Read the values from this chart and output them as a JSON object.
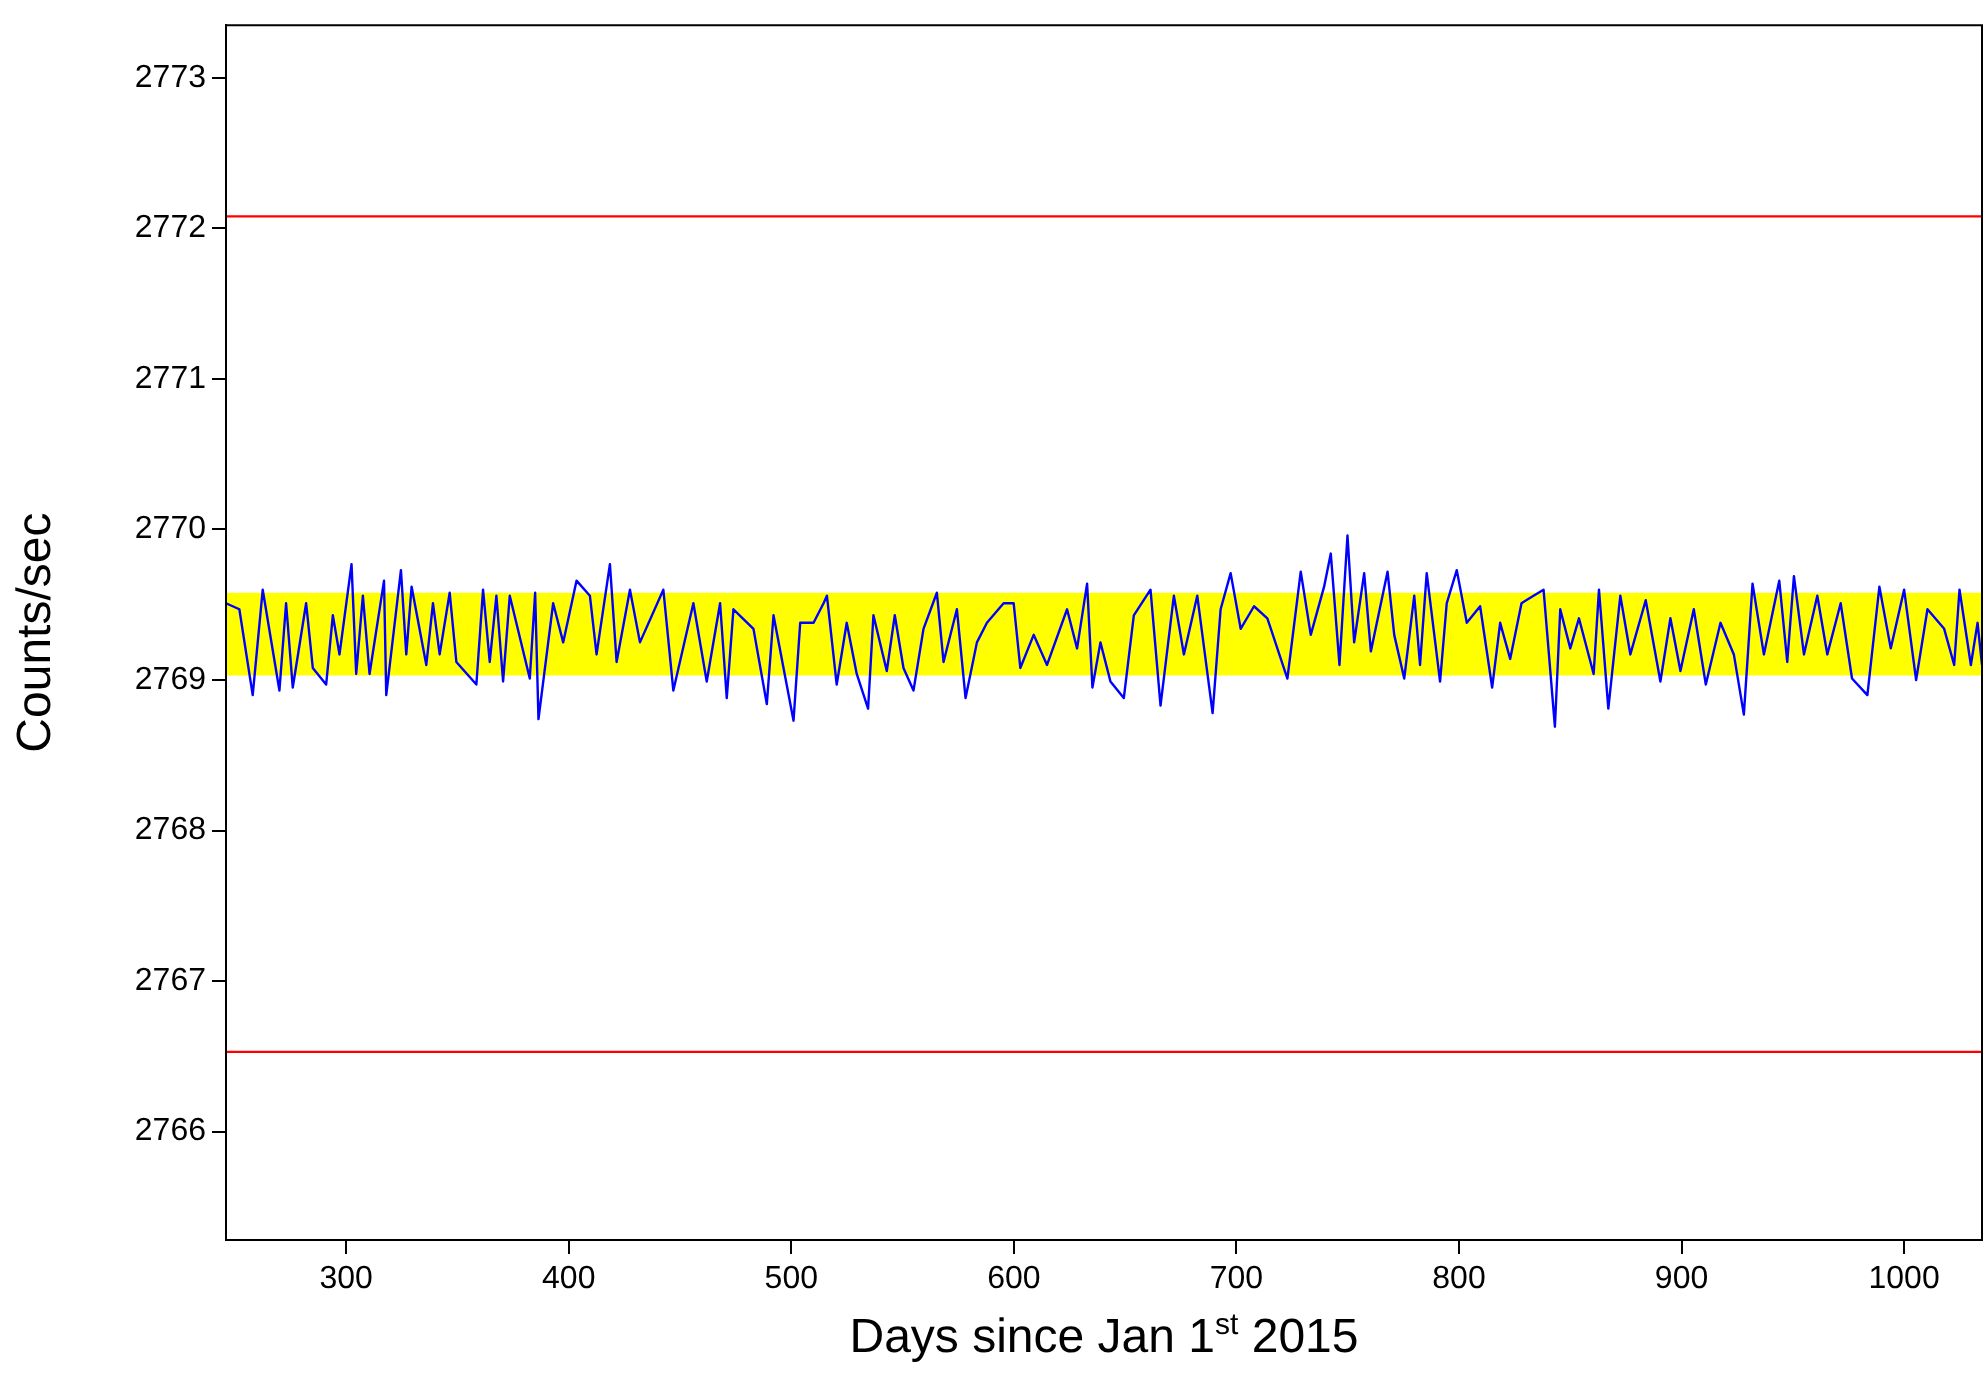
{
  "chart_data": {
    "type": "line",
    "xlabel": "Days since Jan 1$^{st}$ 2015",
    "ylabel": "Counts/sec",
    "xlim": [
      246,
      1035
    ],
    "ylim": [
      2765.28,
      2773.35
    ],
    "xticks": [
      300,
      400,
      500,
      600,
      700,
      800,
      900,
      1000
    ],
    "yticks": [
      2766,
      2767,
      2768,
      2769,
      2770,
      2771,
      2772,
      2773
    ],
    "grid": false,
    "legend": false,
    "marker": "none",
    "line_style": "solid",
    "ref_lines": [
      {
        "axis": "y",
        "value": 2772.08,
        "color": "#ff0000"
      },
      {
        "axis": "y",
        "value": 2766.53,
        "color": "#ff0000"
      }
    ],
    "bands": [
      {
        "axis": "y",
        "from": 2769.03,
        "to": 2769.58,
        "color": "#ffff00"
      }
    ],
    "series": [
      {
        "color": "#0000ff",
        "x": [
          246,
          252,
          258,
          262.5,
          270,
          273,
          276,
          282,
          285,
          291,
          294,
          297,
          302.4,
          304.5,
          307.5,
          310.5,
          317,
          318,
          324.6,
          327,
          329.4,
          336,
          339,
          342,
          346.5,
          349.5,
          358.5,
          361.5,
          364.5,
          367.5,
          370.5,
          373.5,
          382.5,
          384.9,
          386.4,
          393,
          397.5,
          403.5,
          409.5,
          412.5,
          418.5,
          421.5,
          427.5,
          432,
          442.5,
          447,
          456,
          462,
          468,
          471,
          474,
          483,
          489,
          492,
          501,
          504,
          510,
          514.5,
          516,
          520.4,
          524.9,
          529.4,
          534.5,
          536.9,
          542.9,
          546.5,
          550.4,
          554.9,
          559.4,
          565.4,
          568.4,
          574.4,
          578.3,
          583.4,
          587.9,
          595.4,
          599.9,
          602.9,
          608.9,
          614.9,
          623.9,
          628.4,
          632.9,
          635.3,
          638.9,
          643.4,
          649.4,
          653.9,
          661.4,
          665.9,
          671.9,
          676.4,
          682.4,
          689.3,
          692.9,
          697.4,
          701.9,
          707.9,
          713.9,
          722.9,
          728.9,
          733.4,
          739.4,
          742.4,
          746.3,
          749.9,
          752.9,
          757.4,
          760.4,
          767.9,
          770.9,
          775.4,
          779.9,
          782.5,
          785.5,
          791.5,
          794.5,
          799,
          803.5,
          809.5,
          814.9,
          818.5,
          823,
          828.1,
          833.5,
          838,
          843.1,
          845.5,
          850,
          853.9,
          860.5,
          862.9,
          867.1,
          872.5,
          877,
          883.9,
          890.5,
          895,
          899.5,
          905.5,
          910.9,
          917.5,
          923.5,
          928,
          931.9,
          937,
          943.9,
          947.5,
          950.5,
          955,
          961,
          965.5,
          971.5,
          976.6,
          983.5,
          988.9,
          994,
          1000,
          1005.4,
          1010.5,
          1018,
          1022.5,
          1024.9,
          1030,
          1033,
          1035
        ],
        "values": [
          2769.51,
          2769.47,
          2768.9,
          2769.6,
          2768.93,
          2769.51,
          2768.95,
          2769.51,
          2769.08,
          2768.97,
          2769.43,
          2769.17,
          2769.77,
          2769.04,
          2769.56,
          2769.04,
          2769.66,
          2768.9,
          2769.73,
          2769.17,
          2769.62,
          2769.1,
          2769.51,
          2769.17,
          2769.58,
          2769.12,
          2768.97,
          2769.6,
          2769.12,
          2769.56,
          2768.99,
          2769.56,
          2769.01,
          2769.58,
          2768.74,
          2769.51,
          2769.25,
          2769.66,
          2769.56,
          2769.17,
          2769.77,
          2769.12,
          2769.6,
          2769.25,
          2769.6,
          2768.93,
          2769.51,
          2768.99,
          2769.51,
          2768.88,
          2769.47,
          2769.34,
          2768.84,
          2769.43,
          2768.73,
          2769.38,
          2769.38,
          2769.51,
          2769.56,
          2768.97,
          2769.38,
          2769.04,
          2768.81,
          2769.43,
          2769.06,
          2769.43,
          2769.08,
          2768.93,
          2769.34,
          2769.58,
          2769.12,
          2769.47,
          2768.88,
          2769.25,
          2769.38,
          2769.51,
          2769.51,
          2769.08,
          2769.3,
          2769.1,
          2769.47,
          2769.21,
          2769.64,
          2768.95,
          2769.25,
          2768.99,
          2768.88,
          2769.43,
          2769.6,
          2768.83,
          2769.56,
          2769.17,
          2769.56,
          2768.78,
          2769.47,
          2769.71,
          2769.34,
          2769.49,
          2769.41,
          2769.01,
          2769.72,
          2769.3,
          2769.62,
          2769.84,
          2769.1,
          2769.96,
          2769.25,
          2769.71,
          2769.19,
          2769.72,
          2769.3,
          2769.01,
          2769.56,
          2769.1,
          2769.71,
          2768.99,
          2769.51,
          2769.73,
          2769.38,
          2769.49,
          2768.95,
          2769.38,
          2769.14,
          2769.51,
          2769.56,
          2769.6,
          2768.69,
          2769.47,
          2769.21,
          2769.41,
          2769.04,
          2769.6,
          2768.81,
          2769.56,
          2769.17,
          2769.53,
          2768.99,
          2769.41,
          2769.06,
          2769.47,
          2768.97,
          2769.38,
          2769.17,
          2768.77,
          2769.64,
          2769.17,
          2769.66,
          2769.12,
          2769.69,
          2769.17,
          2769.56,
          2769.17,
          2769.51,
          2769.01,
          2768.9,
          2769.62,
          2769.21,
          2769.6,
          2769,
          2769.47,
          2769.34,
          2769.1,
          2769.6,
          2769.1,
          2769.38,
          2769.1
        ]
      }
    ]
  }
}
